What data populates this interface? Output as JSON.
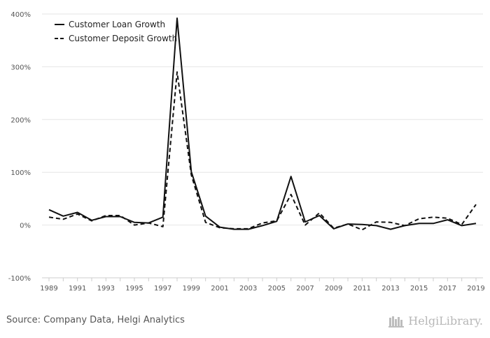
{
  "chart_data": {
    "type": "line",
    "title": "",
    "xlabel": "",
    "ylabel": "",
    "x": [
      1989,
      1990,
      1991,
      1992,
      1993,
      1994,
      1995,
      1996,
      1997,
      1998,
      1999,
      2000,
      2001,
      2002,
      2003,
      2004,
      2005,
      2006,
      2007,
      2008,
      2009,
      2010,
      2011,
      2012,
      2013,
      2014,
      2015,
      2016,
      2017,
      2018,
      2019
    ],
    "xticks": [
      "1989",
      "1991",
      "1993",
      "1995",
      "1997",
      "1999",
      "2001",
      "2003",
      "2005",
      "2007",
      "2009",
      "2011",
      "2013",
      "2015",
      "2017",
      "2019"
    ],
    "ylim": [
      -100,
      400
    ],
    "yticks": [
      -100,
      0,
      100,
      200,
      300,
      400
    ],
    "ytick_labels": [
      "-100%",
      "0%",
      "100%",
      "200%",
      "300%",
      "400%"
    ],
    "grid": true,
    "legend_position": "top-left",
    "series": [
      {
        "name": "Customer Loan Growth",
        "style": "solid",
        "color": "#111111",
        "values": [
          29,
          17,
          24,
          9,
          16,
          16,
          5,
          4,
          15,
          392,
          101,
          17,
          -4,
          -8,
          -8,
          -1,
          7,
          92,
          6,
          18,
          -7,
          2,
          1,
          -1,
          -8,
          -1,
          3,
          3,
          10,
          -1,
          3
        ]
      },
      {
        "name": "Customer Deposit Growth",
        "style": "dashed",
        "color": "#111111",
        "values": [
          15,
          11,
          21,
          8,
          18,
          18,
          0,
          4,
          -3,
          290,
          95,
          5,
          -5,
          -7,
          -7,
          4,
          8,
          58,
          0,
          23,
          -6,
          2,
          -9,
          6,
          5,
          -1,
          12,
          15,
          13,
          1,
          39
        ]
      }
    ]
  },
  "footer": {
    "source": "Source: Company Data, Helgi Analytics",
    "logo_text": "HelgiLibrary."
  }
}
